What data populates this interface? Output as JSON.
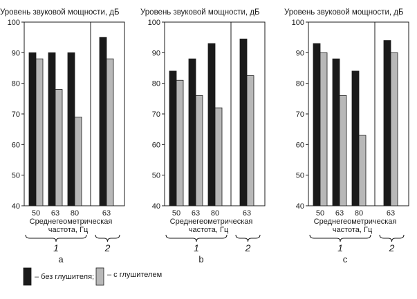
{
  "figure": {
    "colors": {
      "without": "#1a1a1a",
      "with": "#b8b8b8",
      "axis": "#1a1a1a"
    },
    "legend": {
      "without_label": "– без глушителя;",
      "with_label": "– с глушителем"
    }
  },
  "chart_data": [
    {
      "type": "bar",
      "panel_label": "а",
      "ylabel": "Уровень звуковой мощности, дБ",
      "xlabel_line1": "Среднегеометрическая",
      "xlabel_line2": "частота, Гц",
      "ylim": [
        40,
        100
      ],
      "yticks": [
        40,
        50,
        60,
        70,
        80,
        90,
        100
      ],
      "groups": [
        {
          "label": "1",
          "categories": [
            "50",
            "63",
            "80"
          ]
        },
        {
          "label": "2",
          "categories": [
            "63"
          ]
        }
      ],
      "series": [
        {
          "name": "без глушителя",
          "values": [
            90,
            90,
            90,
            95
          ]
        },
        {
          "name": "с глушителем",
          "values": [
            88,
            78,
            69,
            88
          ]
        }
      ],
      "grid": false
    },
    {
      "type": "bar",
      "panel_label": "b",
      "ylabel": "Уровень звуковой мощности, дБ",
      "xlabel_line1": "Среднегеометрическая",
      "xlabel_line2": "частота, Гц",
      "ylim": [
        40,
        100
      ],
      "yticks": [
        40,
        50,
        60,
        70,
        80,
        90,
        100
      ],
      "groups": [
        {
          "label": "1",
          "categories": [
            "50",
            "63",
            "80"
          ]
        },
        {
          "label": "2",
          "categories": [
            "63"
          ]
        }
      ],
      "series": [
        {
          "name": "без глушителя",
          "values": [
            84,
            88,
            93,
            94.5
          ]
        },
        {
          "name": "с глушителем",
          "values": [
            81,
            76,
            72,
            82.5
          ]
        }
      ],
      "grid": false
    },
    {
      "type": "bar",
      "panel_label": "c",
      "ylabel": "Уровень звуковой мощности, дБ",
      "xlabel_line1": "Среднегеометрическая",
      "xlabel_line2": "частота, Гц",
      "ylim": [
        40,
        100
      ],
      "yticks": [
        40,
        50,
        60,
        70,
        80,
        90,
        100
      ],
      "groups": [
        {
          "label": "1",
          "categories": [
            "50",
            "63",
            "80"
          ]
        },
        {
          "label": "2",
          "categories": [
            "63"
          ]
        }
      ],
      "series": [
        {
          "name": "без глушителя",
          "values": [
            93,
            88,
            84,
            94
          ]
        },
        {
          "name": "с глушителем",
          "values": [
            90,
            76,
            63,
            90
          ]
        }
      ],
      "grid": false
    }
  ]
}
